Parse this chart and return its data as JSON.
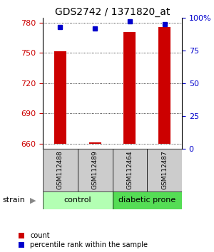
{
  "title": "GDS2742 / 1371820_at",
  "samples": [
    "GSM112488",
    "GSM112489",
    "GSM112464",
    "GSM112487"
  ],
  "counts": [
    752,
    661,
    771,
    776
  ],
  "percentile_ranks": [
    93,
    92,
    97,
    95
  ],
  "ylim_left": [
    655,
    785
  ],
  "yticks_left": [
    660,
    690,
    720,
    750,
    780
  ],
  "yticks_right": [
    0,
    25,
    50,
    75,
    100
  ],
  "ylim_right": [
    0,
    100
  ],
  "bar_color": "#cc0000",
  "marker_color": "#0000cc",
  "bar_width": 0.35,
  "group_control_label": "control",
  "group_diabetic_label": "diabetic prone",
  "group_control_color": "#b3ffb3",
  "group_diabetic_color": "#55dd55",
  "label_bg_color": "#cccccc",
  "strain_label": "strain",
  "legend_count_label": "count",
  "legend_pct_label": "percentile rank within the sample",
  "base_value": 660,
  "bg_color": "#ffffff",
  "tick_color_left": "#cc0000",
  "tick_color_right": "#0000cc"
}
